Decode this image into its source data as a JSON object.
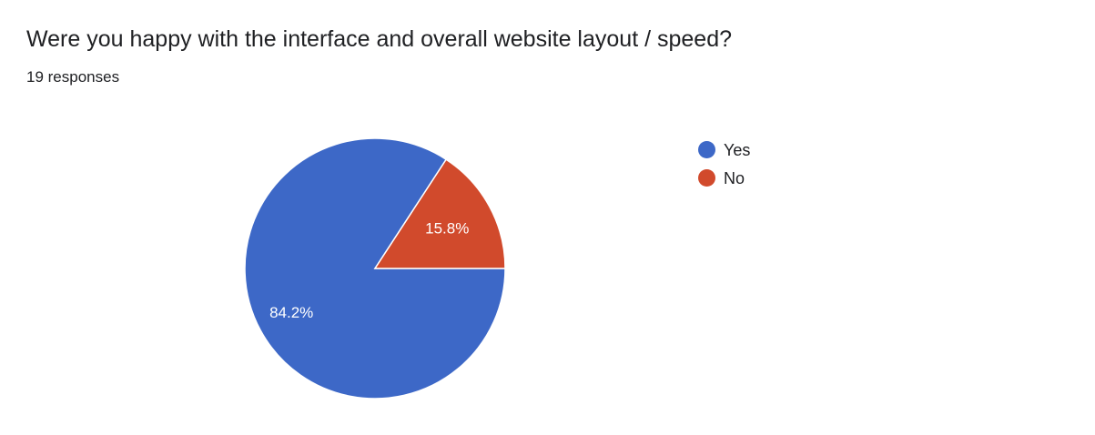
{
  "question": {
    "title": "Were you happy with the interface and overall website layout / speed?",
    "responses": "19 responses"
  },
  "chart_data": {
    "type": "pie",
    "categories": [
      "Yes",
      "No"
    ],
    "values": [
      84.2,
      15.8
    ],
    "labels": [
      "84.2%",
      "15.8%"
    ],
    "colors": [
      "#3d68c7",
      "#d14a2c"
    ],
    "legend_placement": "right"
  }
}
